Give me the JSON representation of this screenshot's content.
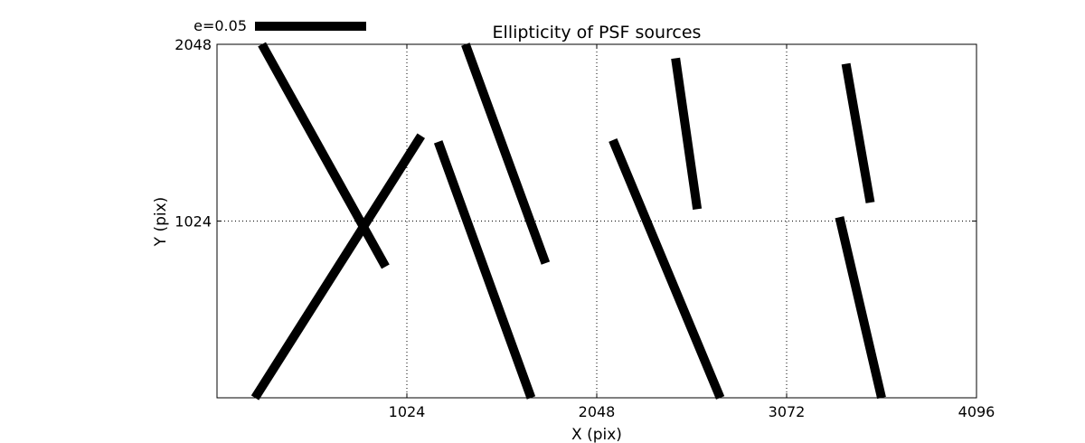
{
  "chart_data": {
    "type": "line",
    "title": "Ellipticity of PSF sources",
    "xlabel": "X (pix)",
    "ylabel": "Y (pix)",
    "xlim": [
      0,
      4096
    ],
    "ylim": [
      0,
      2048
    ],
    "x_ticks": [
      {
        "value": 1024,
        "label": "1024"
      },
      {
        "value": 2048,
        "label": "2048"
      },
      {
        "value": 3072,
        "label": "3072"
      },
      {
        "value": 4096,
        "label": "4096"
      }
    ],
    "y_ticks": [
      {
        "value": 1024,
        "label": "1024"
      },
      {
        "value": 2048,
        "label": "2048"
      }
    ],
    "grid": true,
    "legend": {
      "label": "e=0.05",
      "placement": "top-left, above axes"
    },
    "line_color": "#000000",
    "segments": [
      {
        "x": [
          242,
          909
        ],
        "y": [
          2048,
          760
        ]
      },
      {
        "x": [
          1101,
          205
        ],
        "y": [
          1518,
          0
        ]
      },
      {
        "x": [
          1193,
          1694
        ],
        "y": [
          1483,
          0
        ]
      },
      {
        "x": [
          1340,
          1772
        ],
        "y": [
          2048,
          780
        ]
      },
      {
        "x": [
          2135,
          2714
        ],
        "y": [
          1493,
          0
        ]
      },
      {
        "x": [
          2473,
          2590
        ],
        "y": [
          1967,
          1093
        ]
      },
      {
        "x": [
          3392,
          3523
        ],
        "y": [
          1935,
          1131
        ]
      },
      {
        "x": [
          3357,
          3584
        ],
        "y": [
          1046,
          0
        ]
      }
    ]
  }
}
